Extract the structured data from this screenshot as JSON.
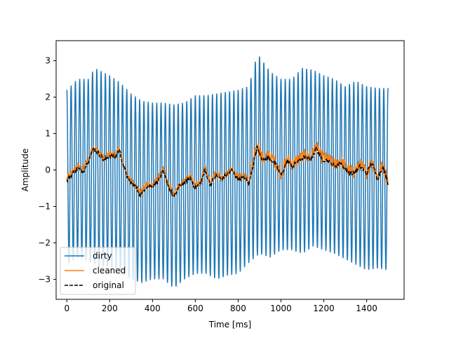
{
  "chart_data": {
    "type": "line",
    "title": "",
    "xlabel": "Time [ms]",
    "ylabel": "Amplitude",
    "xlim": [
      -50,
      1575
    ],
    "ylim": [
      -3.55,
      3.55
    ],
    "xticks": [
      0,
      200,
      400,
      600,
      800,
      1000,
      1200,
      1400
    ],
    "xtick_labels": [
      "0",
      "200",
      "400",
      "600",
      "800",
      "1000",
      "1200",
      "1400"
    ],
    "yticks": [
      -3,
      -2,
      -1,
      0,
      1,
      2,
      3
    ],
    "ytick_labels": [
      "−3",
      "−2",
      "−1",
      "0",
      "1",
      "2",
      "3"
    ],
    "grid": false,
    "legend_position": "lower-left",
    "x_range": [
      0,
      1500
    ],
    "series": [
      {
        "name": "dirty",
        "color": "#1f77b4",
        "style": "solid",
        "description_values": {
          "oscillation_period_ms": 20,
          "upper_envelope": [
            [
              0,
              2.2
            ],
            [
              50,
              2.5
            ],
            [
              100,
              2.5
            ],
            [
              130,
              2.8
            ],
            [
              200,
              2.6
            ],
            [
              250,
              2.4
            ],
            [
              300,
              2.1
            ],
            [
              350,
              1.9
            ],
            [
              400,
              1.85
            ],
            [
              450,
              1.85
            ],
            [
              500,
              1.8
            ],
            [
              550,
              1.85
            ],
            [
              600,
              2.05
            ],
            [
              650,
              2.05
            ],
            [
              700,
              2.1
            ],
            [
              750,
              2.15
            ],
            [
              800,
              2.2
            ],
            [
              850,
              2.3
            ],
            [
              890,
              3.2
            ],
            [
              950,
              2.7
            ],
            [
              1000,
              2.5
            ],
            [
              1050,
              2.5
            ],
            [
              1100,
              2.8
            ],
            [
              1150,
              2.75
            ],
            [
              1200,
              2.6
            ],
            [
              1250,
              2.5
            ],
            [
              1300,
              2.3
            ],
            [
              1350,
              2.45
            ],
            [
              1400,
              2.3
            ],
            [
              1450,
              2.25
            ],
            [
              1500,
              2.25
            ]
          ],
          "lower_envelope": [
            [
              0,
              -2.6
            ],
            [
              50,
              -2.4
            ],
            [
              100,
              -2.5
            ],
            [
              150,
              -2.65
            ],
            [
              200,
              -2.65
            ],
            [
              250,
              -2.8
            ],
            [
              300,
              -3.0
            ],
            [
              350,
              -3.1
            ],
            [
              400,
              -3.0
            ],
            [
              450,
              -3.0
            ],
            [
              500,
              -3.25
            ],
            [
              550,
              -3.0
            ],
            [
              600,
              -2.85
            ],
            [
              650,
              -2.85
            ],
            [
              700,
              -3.0
            ],
            [
              750,
              -2.9
            ],
            [
              800,
              -2.85
            ],
            [
              850,
              -2.55
            ],
            [
              900,
              -2.3
            ],
            [
              950,
              -2.4
            ],
            [
              1000,
              -2.2
            ],
            [
              1050,
              -2.2
            ],
            [
              1100,
              -2.3
            ],
            [
              1150,
              -2.1
            ],
            [
              1200,
              -2.2
            ],
            [
              1250,
              -2.3
            ],
            [
              1300,
              -2.45
            ],
            [
              1350,
              -2.6
            ],
            [
              1400,
              -2.75
            ],
            [
              1450,
              -2.7
            ],
            [
              1500,
              -2.75
            ]
          ]
        }
      },
      {
        "name": "cleaned",
        "color": "#ff7f0e",
        "style": "solid"
      },
      {
        "name": "original",
        "color": "#000000",
        "style": "dashed"
      }
    ],
    "original_points": [
      [
        0,
        -0.3
      ],
      [
        25,
        -0.1
      ],
      [
        50,
        0.05
      ],
      [
        75,
        -0.05
      ],
      [
        100,
        0.25
      ],
      [
        125,
        0.6
      ],
      [
        150,
        0.45
      ],
      [
        175,
        0.25
      ],
      [
        200,
        0.4
      ],
      [
        225,
        0.35
      ],
      [
        245,
        0.55
      ],
      [
        265,
        0.1
      ],
      [
        290,
        -0.3
      ],
      [
        320,
        -0.45
      ],
      [
        345,
        -0.7
      ],
      [
        370,
        -0.45
      ],
      [
        400,
        -0.45
      ],
      [
        425,
        -0.3
      ],
      [
        450,
        -0.05
      ],
      [
        475,
        -0.45
      ],
      [
        500,
        -0.75
      ],
      [
        525,
        -0.45
      ],
      [
        550,
        -0.35
      ],
      [
        575,
        -0.2
      ],
      [
        600,
        -0.5
      ],
      [
        625,
        -0.35
      ],
      [
        645,
        0.0
      ],
      [
        670,
        -0.4
      ],
      [
        695,
        -0.15
      ],
      [
        720,
        -0.25
      ],
      [
        745,
        -0.15
      ],
      [
        770,
        0.0
      ],
      [
        800,
        -0.25
      ],
      [
        830,
        -0.2
      ],
      [
        850,
        -0.4
      ],
      [
        870,
        0.15
      ],
      [
        890,
        0.65
      ],
      [
        915,
        0.25
      ],
      [
        945,
        0.35
      ],
      [
        975,
        0.15
      ],
      [
        1000,
        -0.15
      ],
      [
        1030,
        0.25
      ],
      [
        1055,
        0.1
      ],
      [
        1080,
        0.25
      ],
      [
        1110,
        0.35
      ],
      [
        1140,
        0.3
      ],
      [
        1165,
        0.6
      ],
      [
        1190,
        0.3
      ],
      [
        1220,
        0.25
      ],
      [
        1250,
        0.1
      ],
      [
        1280,
        0.2
      ],
      [
        1310,
        -0.05
      ],
      [
        1340,
        -0.1
      ],
      [
        1370,
        0.1
      ],
      [
        1400,
        -0.1
      ],
      [
        1425,
        0.2
      ],
      [
        1450,
        -0.25
      ],
      [
        1475,
        0.1
      ],
      [
        1500,
        -0.35
      ]
    ]
  }
}
